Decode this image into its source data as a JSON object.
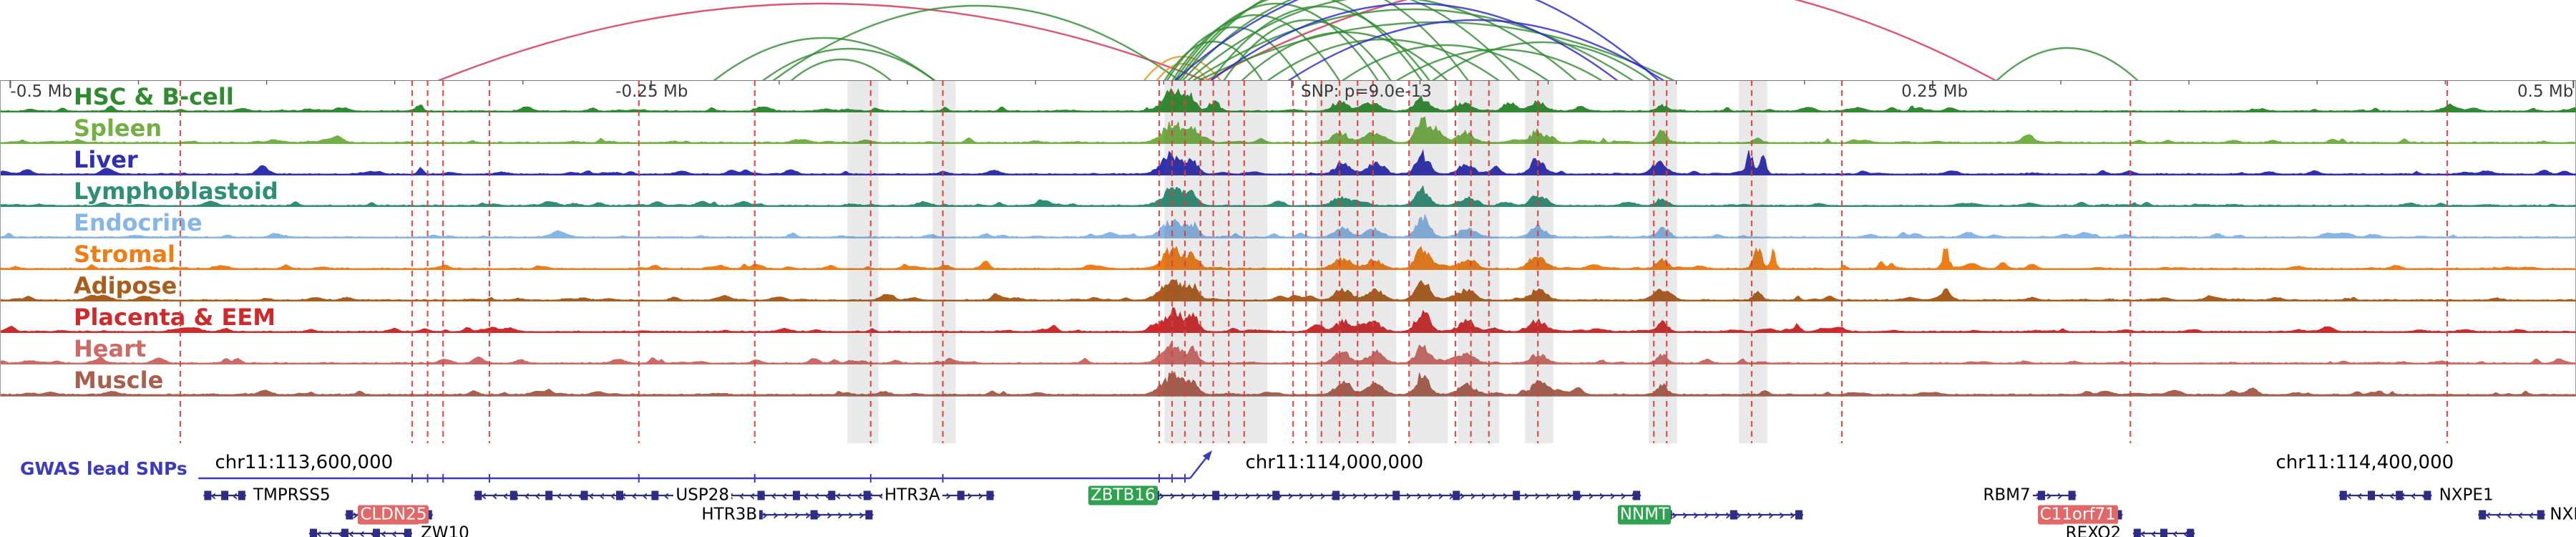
{
  "ruler": {
    "labels": [
      {
        "text": "-0.5 Mb",
        "x": 0.004,
        "anchor": "left"
      },
      {
        "text": "-0.25 Mb",
        "x": 0.253,
        "anchor": "center"
      },
      {
        "text": "SNP: p=9.0e-13",
        "x": 0.505,
        "anchor": "left"
      },
      {
        "text": "0.25 Mb",
        "x": 0.751,
        "anchor": "center"
      },
      {
        "text": "0.5 Mb",
        "x": 0.999,
        "anchor": "right"
      }
    ]
  },
  "gwas": {
    "label": "GWAS lead SNPs",
    "color": "#3b3bbf",
    "line": [
      0.077,
      0.462
    ],
    "ticks": [
      0.16,
      0.166,
      0.172,
      0.19,
      0.248,
      0.293,
      0.338,
      0.366,
      0.45,
      0.455,
      0.46
    ]
  },
  "coordinates": [
    {
      "text": "chr11:113,600,000",
      "x": 0.118
    },
    {
      "text": "chr11:114,000,000",
      "x": 0.518
    },
    {
      "text": "chr11:114,400,000",
      "x": 0.918
    }
  ],
  "chart_data": {
    "type": "area",
    "x_axis": {
      "units": "Mb relative to lead SNP",
      "range": [
        -0.5,
        0.5
      ],
      "ticks": [
        "-0.5 Mb",
        "-0.25 Mb",
        "0",
        "0.25 Mb",
        "0.5 Mb"
      ]
    },
    "snp_annotation": "SNP: p=9.0e-13",
    "tracks": [
      {
        "name": "HSC & B-cell",
        "color": "#2f8b2f",
        "seed": 1,
        "peaks": [
          [
            0.455,
            0.004,
            0.85
          ],
          [
            0.462,
            0.002,
            0.6
          ],
          [
            0.471,
            0.002,
            0.4
          ],
          [
            0.52,
            0.003,
            0.4
          ],
          [
            0.531,
            0.003,
            0.35
          ],
          [
            0.552,
            0.003,
            0.5
          ],
          [
            0.568,
            0.003,
            0.35
          ],
          [
            0.585,
            0.002,
            0.3
          ],
          [
            0.597,
            0.003,
            0.4
          ],
          [
            0.645,
            0.002,
            0.25
          ],
          [
            0.163,
            0.001,
            0.2
          ],
          [
            0.23,
            0.001,
            0.15
          ],
          [
            0.34,
            0.0012,
            0.15
          ]
        ]
      },
      {
        "name": "Spleen",
        "color": "#72b043",
        "seed": 2,
        "peaks": [
          [
            0.455,
            0.004,
            0.8
          ],
          [
            0.463,
            0.002,
            0.5
          ],
          [
            0.52,
            0.003,
            0.45
          ],
          [
            0.532,
            0.003,
            0.4
          ],
          [
            0.552,
            0.0025,
            0.95
          ],
          [
            0.558,
            0.002,
            0.6
          ],
          [
            0.569,
            0.003,
            0.4
          ],
          [
            0.597,
            0.003,
            0.5
          ],
          [
            0.645,
            0.002,
            0.4
          ],
          [
            0.682,
            0.0015,
            0.2
          ]
        ]
      },
      {
        "name": "Liver",
        "color": "#2f2fb4",
        "seed": 3,
        "peaks": [
          [
            0.455,
            0.004,
            0.8
          ],
          [
            0.463,
            0.002,
            0.55
          ],
          [
            0.521,
            0.003,
            0.45
          ],
          [
            0.533,
            0.003,
            0.4
          ],
          [
            0.552,
            0.0025,
            0.85
          ],
          [
            0.569,
            0.003,
            0.4
          ],
          [
            0.597,
            0.003,
            0.45
          ],
          [
            0.644,
            0.002,
            0.5
          ],
          [
            0.679,
            0.0012,
            0.95
          ],
          [
            0.684,
            0.0012,
            0.9
          ],
          [
            0.163,
            0.001,
            0.3
          ]
        ]
      },
      {
        "name": "Lymphoblastoid",
        "color": "#2f8f74",
        "seed": 4,
        "peaks": [
          [
            0.455,
            0.004,
            0.8
          ],
          [
            0.462,
            0.002,
            0.5
          ],
          [
            0.52,
            0.003,
            0.35
          ],
          [
            0.552,
            0.0025,
            0.7
          ],
          [
            0.569,
            0.003,
            0.3
          ],
          [
            0.597,
            0.003,
            0.35
          ],
          [
            0.645,
            0.002,
            0.3
          ]
        ]
      },
      {
        "name": "Endocrine",
        "color": "#86b6e6",
        "seed": 5,
        "peaks": [
          [
            0.455,
            0.004,
            0.75
          ],
          [
            0.463,
            0.002,
            0.5
          ],
          [
            0.521,
            0.003,
            0.4
          ],
          [
            0.533,
            0.003,
            0.35
          ],
          [
            0.552,
            0.0025,
            0.8
          ],
          [
            0.569,
            0.003,
            0.4
          ],
          [
            0.597,
            0.003,
            0.4
          ],
          [
            0.645,
            0.002,
            0.35
          ]
        ]
      },
      {
        "name": "Stromal",
        "color": "#ee7d16",
        "seed": 6,
        "peaks": [
          [
            0.455,
            0.004,
            0.85
          ],
          [
            0.463,
            0.002,
            0.55
          ],
          [
            0.521,
            0.003,
            0.45
          ],
          [
            0.533,
            0.003,
            0.4
          ],
          [
            0.552,
            0.0025,
            0.9
          ],
          [
            0.569,
            0.003,
            0.45
          ],
          [
            0.597,
            0.003,
            0.5
          ],
          [
            0.645,
            0.002,
            0.45
          ],
          [
            0.682,
            0.0015,
            0.95
          ],
          [
            0.688,
            0.001,
            0.7
          ],
          [
            0.755,
            0.0012,
            0.9
          ],
          [
            0.73,
            0.001,
            0.3
          ]
        ]
      },
      {
        "name": "Adipose",
        "color": "#ab5d1c",
        "seed": 7,
        "peaks": [
          [
            0.455,
            0.004,
            0.85
          ],
          [
            0.463,
            0.002,
            0.55
          ],
          [
            0.521,
            0.003,
            0.5
          ],
          [
            0.533,
            0.003,
            0.45
          ],
          [
            0.552,
            0.0025,
            0.95
          ],
          [
            0.569,
            0.003,
            0.45
          ],
          [
            0.597,
            0.003,
            0.5
          ],
          [
            0.645,
            0.002,
            0.45
          ],
          [
            0.682,
            0.0015,
            0.4
          ],
          [
            0.755,
            0.0012,
            0.25
          ]
        ]
      },
      {
        "name": "Placenta & EEM",
        "color": "#cf2a2a",
        "seed": 8,
        "peaks": [
          [
            0.455,
            0.004,
            0.9
          ],
          [
            0.463,
            0.002,
            0.6
          ],
          [
            0.521,
            0.003,
            0.45
          ],
          [
            0.533,
            0.003,
            0.4
          ],
          [
            0.552,
            0.0025,
            0.95
          ],
          [
            0.569,
            0.003,
            0.45
          ],
          [
            0.597,
            0.003,
            0.45
          ],
          [
            0.645,
            0.002,
            0.4
          ],
          [
            0.697,
            0.0012,
            0.3
          ]
        ]
      },
      {
        "name": "Heart",
        "color": "#ce6a66",
        "seed": 9,
        "peaks": [
          [
            0.455,
            0.004,
            0.8
          ],
          [
            0.463,
            0.002,
            0.5
          ],
          [
            0.521,
            0.003,
            0.4
          ],
          [
            0.533,
            0.003,
            0.35
          ],
          [
            0.552,
            0.0025,
            0.8
          ],
          [
            0.569,
            0.003,
            0.4
          ],
          [
            0.597,
            0.003,
            0.4
          ],
          [
            0.645,
            0.002,
            0.35
          ]
        ]
      },
      {
        "name": "Muscle",
        "color": "#aa5f4c",
        "seed": 10,
        "peaks": [
          [
            0.455,
            0.004,
            0.85
          ],
          [
            0.463,
            0.002,
            0.55
          ],
          [
            0.521,
            0.003,
            0.45
          ],
          [
            0.533,
            0.003,
            0.4
          ],
          [
            0.552,
            0.0025,
            0.9
          ],
          [
            0.569,
            0.003,
            0.45
          ],
          [
            0.597,
            0.003,
            0.45
          ],
          [
            0.645,
            0.002,
            0.4
          ]
        ]
      }
    ],
    "arc_colors": {
      "green": "#2e8b2e",
      "blue": "#2626c9",
      "crimson": "#d42a50",
      "orange": "#e8921e"
    },
    "arcs": [
      {
        "x1": 0.17,
        "x2": 0.468,
        "h": 108,
        "c": "crimson"
      },
      {
        "x1": 0.468,
        "x2": 0.775,
        "h": 150,
        "c": "crimson"
      },
      {
        "x1": 0.775,
        "x2": 0.83,
        "h": 46,
        "c": "green"
      },
      {
        "x1": 0.277,
        "x2": 0.363,
        "h": 60,
        "c": "green"
      },
      {
        "x1": 0.296,
        "x2": 0.363,
        "h": 45,
        "c": "green"
      },
      {
        "x1": 0.307,
        "x2": 0.346,
        "h": 30,
        "c": "green"
      },
      {
        "x1": 0.3,
        "x2": 0.458,
        "h": 105,
        "c": "green"
      },
      {
        "x1": 0.449,
        "x2": 0.469,
        "h": 24,
        "c": "orange"
      },
      {
        "x1": 0.444,
        "x2": 0.474,
        "h": 34,
        "c": "orange"
      },
      {
        "x1": 0.452,
        "x2": 0.49,
        "h": 55,
        "c": "green"
      },
      {
        "x1": 0.453,
        "x2": 0.505,
        "h": 75,
        "c": "green"
      },
      {
        "x1": 0.455,
        "x2": 0.52,
        "h": 92,
        "c": "green"
      },
      {
        "x1": 0.456,
        "x2": 0.535,
        "h": 108,
        "c": "green"
      },
      {
        "x1": 0.457,
        "x2": 0.552,
        "h": 122,
        "c": "green"
      },
      {
        "x1": 0.458,
        "x2": 0.57,
        "h": 138,
        "c": "green"
      },
      {
        "x1": 0.459,
        "x2": 0.59,
        "h": 130,
        "c": "green"
      },
      {
        "x1": 0.461,
        "x2": 0.612,
        "h": 118,
        "c": "green"
      },
      {
        "x1": 0.463,
        "x2": 0.634,
        "h": 100,
        "c": "green"
      },
      {
        "x1": 0.465,
        "x2": 0.65,
        "h": 82,
        "c": "green"
      },
      {
        "x1": 0.47,
        "x2": 0.555,
        "h": 104,
        "c": "green"
      },
      {
        "x1": 0.475,
        "x2": 0.54,
        "h": 85,
        "c": "green"
      },
      {
        "x1": 0.482,
        "x2": 0.562,
        "h": 68,
        "c": "green"
      },
      {
        "x1": 0.492,
        "x2": 0.582,
        "h": 58,
        "c": "green"
      },
      {
        "x1": 0.521,
        "x2": 0.601,
        "h": 50,
        "c": "green"
      },
      {
        "x1": 0.542,
        "x2": 0.622,
        "h": 44,
        "c": "green"
      },
      {
        "x1": 0.556,
        "x2": 0.641,
        "h": 54,
        "c": "green"
      },
      {
        "x1": 0.456,
        "x2": 0.644,
        "h": 150,
        "c": "blue"
      },
      {
        "x1": 0.47,
        "x2": 0.628,
        "h": 108,
        "c": "blue"
      },
      {
        "x1": 0.5,
        "x2": 0.646,
        "h": 85,
        "c": "blue"
      }
    ],
    "snp_lines": [
      0.07,
      0.16,
      0.166,
      0.172,
      0.19,
      0.248,
      0.293,
      0.338,
      0.366,
      0.45,
      0.455,
      0.46,
      0.466,
      0.471,
      0.477,
      0.483,
      0.502,
      0.507,
      0.513,
      0.52,
      0.527,
      0.533,
      0.547,
      0.565,
      0.571,
      0.578,
      0.597,
      0.642,
      0.647,
      0.68,
      0.715,
      0.827,
      0.95
    ],
    "highlight_bands": [
      [
        0.329,
        0.012
      ],
      [
        0.362,
        0.009
      ],
      [
        0.452,
        0.04
      ],
      [
        0.511,
        0.031
      ],
      [
        0.547,
        0.015
      ],
      [
        0.566,
        0.016
      ],
      [
        0.592,
        0.011
      ],
      [
        0.64,
        0.011
      ],
      [
        0.675,
        0.011
      ]
    ],
    "gene_color": "#2d2d86",
    "genes": [
      {
        "name": "TMPRSS5",
        "row": 0,
        "body": [
          0.079,
          0.0955
        ],
        "strand": "-",
        "exons": 3,
        "label_x": 0.0975,
        "highlight": null
      },
      {
        "name": "CLDN25",
        "row": 1,
        "body": [
          0.134,
          0.168
        ],
        "strand": "+",
        "exons": 2,
        "label_x": 0.139,
        "highlight": "red"
      },
      {
        "name": "ZW10",
        "row": 2,
        "body": [
          0.12,
          0.16
        ],
        "strand": "-",
        "exons": 4,
        "label_x": 0.1625,
        "highlight": null
      },
      {
        "name": "USP28",
        "row": 0,
        "body": [
          0.184,
          0.352
        ],
        "strand": "-",
        "exons": 13,
        "label_x": 0.2615,
        "highlight": null
      },
      {
        "name": "HTR3B",
        "row": 1,
        "body": [
          0.293,
          0.339
        ],
        "strand": "+",
        "exons": 3,
        "label_x": 0.2715,
        "highlight": null
      },
      {
        "name": "HTR3A",
        "row": 0,
        "body": [
          0.36,
          0.386
        ],
        "strand": "+",
        "exons": 3,
        "label_x": 0.3425,
        "highlight": null
      },
      {
        "name": "ZBTB16",
        "row": 0,
        "body": [
          0.447,
          0.637
        ],
        "strand": "+",
        "exons": 9,
        "label_x": 0.4225,
        "highlight": "green"
      },
      {
        "name": "NNMT",
        "row": 1,
        "body": [
          0.646,
          0.7
        ],
        "strand": "+",
        "exons": 3,
        "label_x": 0.628,
        "highlight": "green"
      },
      {
        "name": "RBM7",
        "row": 0,
        "body": [
          0.779,
          0.806
        ],
        "strand": "+",
        "exons": 3,
        "label_x": 0.769,
        "highlight": null
      },
      {
        "name": "C11orf71",
        "row": 1,
        "body": [
          0.806,
          0.824
        ],
        "strand": "-",
        "exons": 2,
        "label_x": 0.791,
        "highlight": "red"
      },
      {
        "name": "REXO2",
        "row": 2,
        "body": [
          0.828,
          0.852
        ],
        "strand": "-",
        "exons": 3,
        "label_x": 0.801,
        "highlight": null
      },
      {
        "name": "NXPE1",
        "row": 0,
        "body": [
          0.908,
          0.944
        ],
        "strand": "-",
        "exons": 4,
        "label_x": 0.946,
        "highlight": null
      },
      {
        "name": "NXPE",
        "row": 1,
        "body": [
          0.962,
          0.988
        ],
        "strand": "-",
        "exons": 2,
        "label_x": 0.989,
        "highlight": null
      }
    ]
  }
}
